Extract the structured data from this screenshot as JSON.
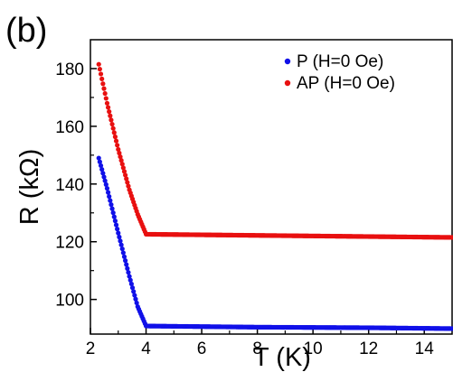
{
  "chart_data": {
    "type": "scatter",
    "panel_label": "(b)",
    "xlabel": "T (K)",
    "ylabel": "R (kΩ)",
    "xlim": [
      2,
      15
    ],
    "ylim": [
      88,
      190
    ],
    "xticks": [
      2,
      4,
      6,
      8,
      10,
      12,
      14
    ],
    "yticks": [
      100,
      120,
      140,
      160,
      180
    ],
    "grid": false,
    "legend_position": "top-right",
    "series": [
      {
        "name": "P (H=0 Oe)",
        "color": "#1010e8",
        "x": [
          2.3,
          2.6,
          3.0,
          3.4,
          3.7,
          4.0,
          6.0,
          8.0,
          10.0,
          12.0,
          14.0,
          15.0
        ],
        "y": [
          149.0,
          138.5,
          123.0,
          108.0,
          97.5,
          90.8,
          90.6,
          90.4,
          90.3,
          90.2,
          90.0,
          89.9
        ]
      },
      {
        "name": "AP (H=0 Oe)",
        "color": "#e81010",
        "x": [
          2.3,
          2.6,
          3.0,
          3.4,
          3.7,
          4.0,
          6.0,
          8.0,
          10.0,
          12.0,
          14.0,
          15.0
        ],
        "y": [
          181.5,
          168.0,
          152.0,
          138.0,
          129.5,
          122.6,
          122.4,
          122.2,
          122.0,
          121.8,
          121.6,
          121.5
        ]
      }
    ]
  }
}
